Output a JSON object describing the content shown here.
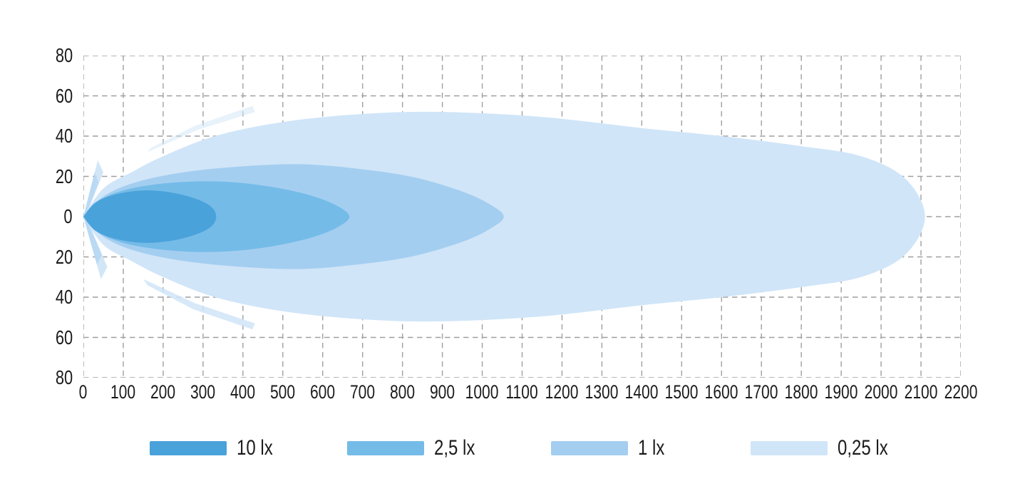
{
  "chart_data": {
    "type": "area",
    "subtype": "isolux-beam-pattern",
    "title": "",
    "xlabel": "",
    "ylabel": "",
    "xlim": [
      0,
      2200
    ],
    "ylim": [
      -80,
      80
    ],
    "x_ticks": [
      0,
      100,
      200,
      300,
      400,
      500,
      600,
      700,
      800,
      900,
      1000,
      1100,
      1200,
      1300,
      1400,
      1500,
      1600,
      1700,
      1800,
      1900,
      2000,
      2100,
      2200
    ],
    "y_tick_labels": [
      "80",
      "60",
      "40",
      "20",
      "0",
      "20",
      "40",
      "60",
      "80"
    ],
    "y_tick_values": [
      80,
      60,
      40,
      20,
      0,
      -20,
      -40,
      -60,
      -80
    ],
    "grid": {
      "on": true,
      "style": "dashed",
      "color": "#9f9f9f"
    },
    "axis_text_color": "#1b1b1b",
    "legend_position": "bottom",
    "series": [
      {
        "label": "10 lx",
        "value_lux": 10,
        "color": "#4AA2DA",
        "reach": 333,
        "max_half_width": 13,
        "upper_points": [
          [
            0,
            0
          ],
          [
            30,
            7
          ],
          [
            80,
            11
          ],
          [
            150,
            13
          ],
          [
            220,
            12
          ],
          [
            280,
            9
          ],
          [
            320,
            5
          ],
          [
            333,
            0
          ]
        ]
      },
      {
        "label": "2,5 lx",
        "value_lux": 2.5,
        "color": "#74BBE8",
        "reach": 667,
        "max_half_width": 17.5,
        "upper_points": [
          [
            0,
            0
          ],
          [
            40,
            8
          ],
          [
            100,
            13
          ],
          [
            180,
            16
          ],
          [
            280,
            17.5
          ],
          [
            380,
            17
          ],
          [
            480,
            14.5
          ],
          [
            570,
            10.5
          ],
          [
            635,
            5.5
          ],
          [
            667,
            0
          ]
        ]
      },
      {
        "label": "1 lx",
        "value_lux": 1,
        "color": "#A4CEF0",
        "reach": 1054,
        "max_half_width": 26,
        "upper_points": [
          [
            0,
            0
          ],
          [
            50,
            10
          ],
          [
            130,
            17
          ],
          [
            250,
            22
          ],
          [
            400,
            25
          ],
          [
            550,
            26
          ],
          [
            700,
            23.5
          ],
          [
            830,
            19.5
          ],
          [
            950,
            12.5
          ],
          [
            1020,
            6
          ],
          [
            1054,
            0
          ]
        ]
      },
      {
        "label": "0,25 lx",
        "value_lux": 0.25,
        "color": "#D0E5F8",
        "reach": 2110,
        "max_half_width": 52,
        "upper_points": [
          [
            0,
            0
          ],
          [
            50,
            14
          ],
          [
            120,
            22
          ],
          [
            200,
            30
          ],
          [
            330,
            40
          ],
          [
            500,
            47
          ],
          [
            700,
            51
          ],
          [
            900,
            52
          ],
          [
            1150,
            49.5
          ],
          [
            1400,
            44
          ],
          [
            1600,
            40
          ],
          [
            1800,
            35
          ],
          [
            1950,
            30
          ],
          [
            2060,
            19
          ],
          [
            2110,
            0
          ]
        ]
      }
    ],
    "flares": [
      {
        "name": "upper-outer-spike",
        "color": "#D0E5F8",
        "opacity": 0.95,
        "points": [
          [
            0,
            0
          ],
          [
            36,
            28
          ],
          [
            50,
            22
          ],
          [
            8,
            1
          ]
        ]
      },
      {
        "name": "upper-inner-spike",
        "color": "#A4CEF0",
        "opacity": 0.55,
        "points": [
          [
            0,
            0
          ],
          [
            28,
            22
          ],
          [
            38,
            17
          ],
          [
            6,
            1
          ]
        ]
      },
      {
        "name": "lower-outer-spike",
        "color": "#D0E5F8",
        "opacity": 0.95,
        "points": [
          [
            0,
            0
          ],
          [
            44,
            -31
          ],
          [
            60,
            -25
          ],
          [
            9,
            -1
          ]
        ]
      },
      {
        "name": "lower-inner-spike",
        "color": "#A4CEF0",
        "opacity": 0.55,
        "points": [
          [
            0,
            0
          ],
          [
            34,
            -24
          ],
          [
            46,
            -19
          ],
          [
            7,
            -1
          ]
        ]
      },
      {
        "name": "lower-wing",
        "color": "#D0E5F8",
        "opacity": 0.85,
        "points": [
          [
            150,
            -31
          ],
          [
            280,
            -43
          ],
          [
            430,
            -53
          ],
          [
            424,
            -56
          ],
          [
            275,
            -46
          ],
          [
            160,
            -34
          ]
        ]
      },
      {
        "name": "upper-wing",
        "color": "#D0E5F8",
        "opacity": 0.5,
        "points": [
          [
            160,
            32
          ],
          [
            285,
            43
          ],
          [
            430,
            52
          ],
          [
            424,
            55
          ],
          [
            278,
            45
          ],
          [
            168,
            34
          ]
        ]
      }
    ]
  },
  "legend": {
    "items": [
      {
        "label": "10 lx",
        "color": "#4AA2DA"
      },
      {
        "label": "2,5 lx",
        "color": "#74BBE8"
      },
      {
        "label": "1 lx",
        "color": "#A4CEF0"
      },
      {
        "label": "0,25 lx",
        "color": "#D0E5F8"
      }
    ]
  }
}
